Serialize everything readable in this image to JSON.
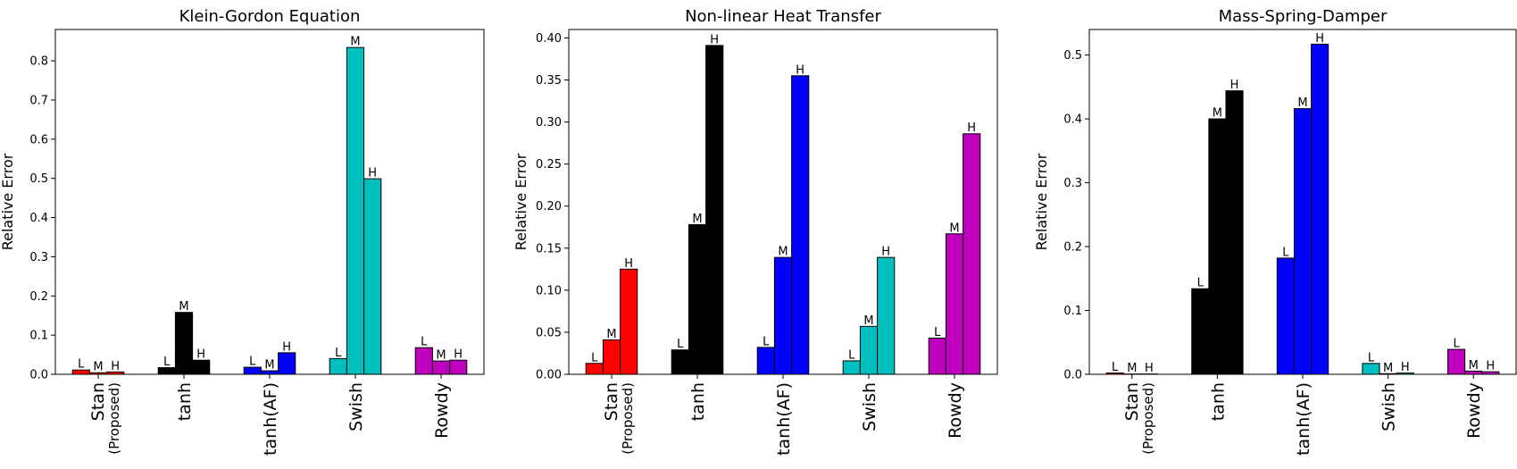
{
  "chart_data": [
    {
      "type": "bar",
      "title": "Klein-Gordon Equation",
      "ylabel": "Relative Error",
      "ylim": [
        0,
        0.88
      ],
      "yticks": [
        "0.0",
        "0.1",
        "0.2",
        "0.3",
        "0.4",
        "0.5",
        "0.6",
        "0.7",
        "0.8"
      ],
      "categories": [
        "Stan",
        "tanh",
        "tanh(AF)",
        "Swish",
        "Rowdy"
      ],
      "category_sublabels": [
        "(Proposed)",
        "",
        "",
        "",
        ""
      ],
      "category_colors": [
        "#ff0000",
        "#000000",
        "#0000ff",
        "#00bfbf",
        "#bf00bf"
      ],
      "bar_labels": [
        "L",
        "M",
        "H"
      ],
      "values": [
        [
          0.011,
          0.004,
          0.006
        ],
        [
          0.017,
          0.158,
          0.036
        ],
        [
          0.018,
          0.009,
          0.055
        ],
        [
          0.04,
          0.834,
          0.499
        ],
        [
          0.068,
          0.034,
          0.036
        ]
      ]
    },
    {
      "type": "bar",
      "title": "Non-linear Heat Transfer",
      "ylabel": "Relative Error",
      "ylim": [
        0,
        0.41
      ],
      "yticks": [
        "0.00",
        "0.05",
        "0.10",
        "0.15",
        "0.20",
        "0.25",
        "0.30",
        "0.35",
        "0.40"
      ],
      "categories": [
        "Stan",
        "tanh",
        "tanh(AF)",
        "Swish",
        "Rowdy"
      ],
      "category_sublabels": [
        "(Proposed)",
        "",
        "",
        "",
        ""
      ],
      "category_colors": [
        "#ff0000",
        "#000000",
        "#0000ff",
        "#00bfbf",
        "#bf00bf"
      ],
      "bar_labels": [
        "L",
        "M",
        "H"
      ],
      "values": [
        [
          0.013,
          0.041,
          0.125
        ],
        [
          0.029,
          0.178,
          0.391
        ],
        [
          0.032,
          0.139,
          0.355
        ],
        [
          0.016,
          0.057,
          0.139
        ],
        [
          0.043,
          0.167,
          0.286
        ]
      ]
    },
    {
      "type": "bar",
      "title": "Mass-Spring-Damper",
      "ylabel": "Relative Error",
      "ylim": [
        0,
        0.54
      ],
      "yticks": [
        "0.0",
        "0.1",
        "0.2",
        "0.3",
        "0.4",
        "0.5"
      ],
      "categories": [
        "Stan",
        "tanh",
        "tanh(AF)",
        "Swish",
        "Rowdy"
      ],
      "category_sublabels": [
        "(Proposed)",
        "",
        "",
        "",
        ""
      ],
      "category_colors": [
        "#ff0000",
        "#000000",
        "#0000ff",
        "#00bfbf",
        "#bf00bf"
      ],
      "bar_labels": [
        "L",
        "M",
        "H"
      ],
      "values": [
        [
          0.002,
          0.0005,
          0.0005
        ],
        [
          0.134,
          0.4,
          0.444
        ],
        [
          0.182,
          0.416,
          0.517
        ],
        [
          0.017,
          0.001,
          0.002
        ],
        [
          0.039,
          0.005,
          0.004
        ]
      ]
    }
  ]
}
